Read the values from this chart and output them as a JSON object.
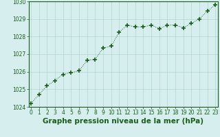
{
  "x": [
    0,
    1,
    2,
    3,
    4,
    5,
    6,
    7,
    8,
    9,
    10,
    11,
    12,
    13,
    14,
    15,
    16,
    17,
    18,
    19,
    20,
    21,
    22,
    23
  ],
  "y": [
    1024.2,
    1024.7,
    1025.2,
    1025.5,
    1025.85,
    1025.95,
    1026.05,
    1026.65,
    1026.7,
    1027.35,
    1027.45,
    1028.25,
    1028.65,
    1028.55,
    1028.55,
    1028.65,
    1028.45,
    1028.65,
    1028.65,
    1028.5,
    1028.75,
    1029.0,
    1029.45,
    1029.8
  ],
  "ylim": [
    1024,
    1030
  ],
  "xlim": [
    -0.3,
    23.3
  ],
  "yticks": [
    1024,
    1025,
    1026,
    1027,
    1028,
    1029,
    1030
  ],
  "xticks": [
    0,
    1,
    2,
    3,
    4,
    5,
    6,
    7,
    8,
    9,
    10,
    11,
    12,
    13,
    14,
    15,
    16,
    17,
    18,
    19,
    20,
    21,
    22,
    23
  ],
  "line_color": "#1a5c1a",
  "marker_color": "#1a5c1a",
  "bg_color": "#d6efee",
  "grid_color": "#b0d4d0",
  "xlabel": "Graphe pression niveau de la mer (hPa)",
  "xlabel_color": "#1a5c1a",
  "tick_color": "#1a5c1a",
  "tick_fontsize": 5.5,
  "xlabel_fontsize": 7.5
}
